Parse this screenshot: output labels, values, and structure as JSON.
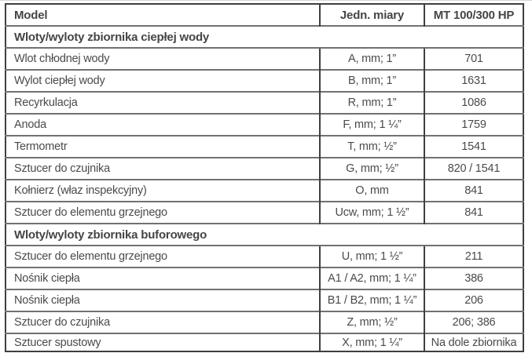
{
  "table": {
    "columns": [
      {
        "label": "Model"
      },
      {
        "label": "Jedn. miary"
      },
      {
        "label": "MT 100/300 HP"
      }
    ],
    "sections": [
      {
        "title": "Wloty/wyloty zbiornika ciepłej wody",
        "rows": [
          {
            "label": "Wlot chłodnej wody",
            "unit": "A, mm; 1”",
            "value": "701"
          },
          {
            "label": "Wylot ciepłej wody",
            "unit": "B, mm; 1”",
            "value": "1631"
          },
          {
            "label": "Recyrkulacja",
            "unit": "R, mm; 1”",
            "value": "1086"
          },
          {
            "label": "Anoda",
            "unit": "F, mm; 1 ¼”",
            "value": "1759"
          },
          {
            "label": "Termometr",
            "unit": "T, mm; ½”",
            "value": "1541"
          },
          {
            "label": "Sztucer do czujnika",
            "unit": "G, mm; ½”",
            "value": "820 / 1541"
          },
          {
            "label": "Kołnierz (właz inspekcyjny)",
            "unit": "O, mm",
            "value": "841"
          },
          {
            "label": "Sztucer do elementu grzejnego",
            "unit": "Ucw, mm; 1 ½”",
            "value": "841"
          }
        ]
      },
      {
        "title": "Wloty/wyloty zbiornika buforowego",
        "rows": [
          {
            "label": "Sztucer do elementu grzejnego",
            "unit": "U, mm; 1 ½”",
            "value": "211"
          },
          {
            "label": "Nośnik ciepła",
            "unit": "A1 / A2, mm; 1 ¼”",
            "value": "386"
          },
          {
            "label": "Nośnik ciepła",
            "unit": "B1 / B2, mm; 1 ¼”",
            "value": "206"
          },
          {
            "label": "Sztucer do czujnika",
            "unit": "Z, mm; ½”",
            "value": "206; 386"
          },
          {
            "label": "Sztucer spustowy",
            "unit": "X, mm; 1 ¼”",
            "value": "Na dole zbiornika"
          }
        ]
      }
    ]
  },
  "colors": {
    "text": "#4a4a4a",
    "bold_text": "#454545",
    "outer_border": "#3f3f3f",
    "row_separator": "#717171",
    "top_edge_line": "#d6d6d6",
    "background": "#ffffff"
  }
}
